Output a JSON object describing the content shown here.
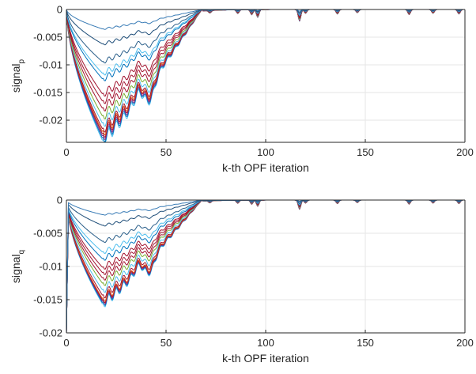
{
  "chart_data": [
    {
      "type": "line",
      "ylabel": "signal",
      "ylabel_subscript": "p",
      "xlabel": "k-th OPF iteration",
      "xlim": [
        0,
        200
      ],
      "ylim": [
        -0.024,
        0
      ],
      "xticks": [
        0,
        50,
        100,
        150,
        200
      ],
      "xtick_labels": [
        "0",
        "50",
        "100",
        "150",
        "200"
      ],
      "yticks": [
        0,
        -0.005,
        -0.01,
        -0.015,
        -0.02
      ],
      "ytick_labels": [
        "0",
        "-0.005",
        "-0.01",
        "-0.015",
        "-0.02"
      ],
      "grid": true,
      "trough_iteration": 18,
      "second_dip_iteration": 42,
      "decay_iteration": 68,
      "series": [
        {
          "color": "#4DBEEE",
          "trough": -0.0236
        },
        {
          "color": "#0072BD",
          "trough": -0.0232
        },
        {
          "color": "#7E2F8E",
          "trough": -0.0228
        },
        {
          "color": "#A2142F",
          "trough": -0.0224
        },
        {
          "color": "#D95319",
          "trough": -0.022
        },
        {
          "color": "#A2142F",
          "trough": -0.0215
        },
        {
          "color": "#4DBEEE",
          "trough": -0.0205
        },
        {
          "color": "#77AC30",
          "trough": -0.0192
        },
        {
          "color": "#A2142F",
          "trough": -0.0178
        },
        {
          "color": "#A2142F",
          "trough": -0.0165
        },
        {
          "color": "#A2142F",
          "trough": -0.0152
        },
        {
          "color": "#0072BD",
          "trough": -0.0125
        },
        {
          "color": "#4DBEEE",
          "trough": -0.0115
        },
        {
          "color": "#2B5F8A",
          "trough": -0.0094
        },
        {
          "color": "#1F4E79",
          "trough": -0.0062
        },
        {
          "color": "#3A7CB6",
          "trough": -0.0035
        }
      ]
    },
    {
      "type": "line",
      "ylabel": "signal",
      "ylabel_subscript": "q",
      "xlabel": "k-th OPF iteration",
      "xlim": [
        0,
        200
      ],
      "ylim": [
        -0.02,
        0
      ],
      "xticks": [
        0,
        50,
        100,
        150,
        200
      ],
      "xtick_labels": [
        "0",
        "50",
        "100",
        "150",
        "200"
      ],
      "yticks": [
        0,
        -0.005,
        -0.01,
        -0.015,
        -0.02
      ],
      "ytick_labels": [
        "0",
        "-0.005",
        "-0.01",
        "-0.015",
        "-0.02"
      ],
      "grid": true,
      "trough_iteration": 18,
      "second_dip_iteration": 42,
      "decay_iteration": 68,
      "initial_spike": {
        "iteration": 1,
        "value": -0.02
      },
      "series": [
        {
          "color": "#4DBEEE",
          "trough": -0.0156
        },
        {
          "color": "#0072BD",
          "trough": -0.0154
        },
        {
          "color": "#7E2F8E",
          "trough": -0.0152
        },
        {
          "color": "#A2142F",
          "trough": -0.015
        },
        {
          "color": "#D95319",
          "trough": -0.0148
        },
        {
          "color": "#A2142F",
          "trough": -0.0143
        },
        {
          "color": "#4DBEEE",
          "trough": -0.0135
        },
        {
          "color": "#77AC30",
          "trough": -0.0125
        },
        {
          "color": "#A2142F",
          "trough": -0.0117
        },
        {
          "color": "#A2142F",
          "trough": -0.0109
        },
        {
          "color": "#A2142F",
          "trough": -0.0101
        },
        {
          "color": "#0072BD",
          "trough": -0.0088
        },
        {
          "color": "#4DBEEE",
          "trough": -0.0078
        },
        {
          "color": "#2B5F8A",
          "trough": -0.0062
        },
        {
          "color": "#1F4E79",
          "trough": -0.0038
        },
        {
          "color": "#3A7CB6",
          "trough": -0.0022
        }
      ]
    }
  ]
}
